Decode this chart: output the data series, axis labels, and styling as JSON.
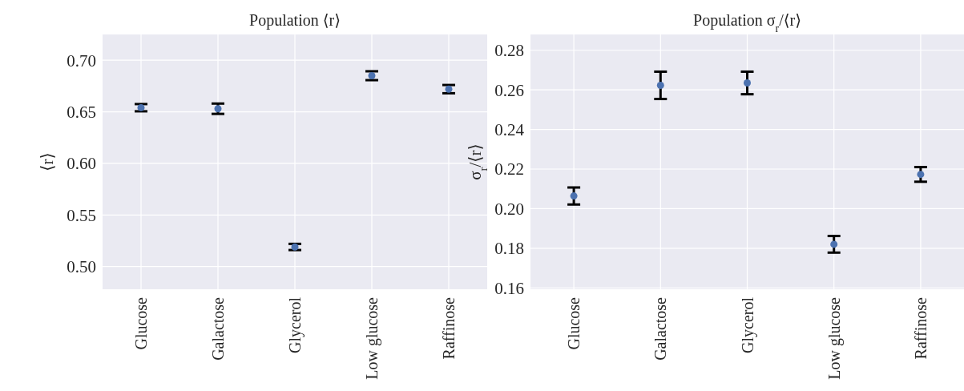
{
  "chart_data": [
    {
      "type": "scatter",
      "title": "Population ⟨r⟩",
      "ylabel": "⟨r⟩",
      "categories": [
        "Glucose",
        "Galactose",
        "Glycerol",
        "Low glucose",
        "Raffinose"
      ],
      "series": [
        {
          "color": "#4c72b0",
          "values": [
            0.654,
            0.653,
            0.519,
            0.685,
            0.672
          ],
          "errors": [
            0.0035,
            0.005,
            0.003,
            0.0043,
            0.004
          ]
        }
      ],
      "ylim": [
        0.478,
        0.725
      ],
      "yticks": [
        {
          "value": 0.5,
          "label": "0.50"
        },
        0.55,
        {
          "value": 0.6,
          "label": "0.60"
        },
        0.65,
        {
          "value": 0.7,
          "label": "0.70"
        }
      ],
      "grid": true,
      "marker": "circle"
    },
    {
      "type": "scatter",
      "title": "Population σ$_{r}$/⟨r⟩",
      "ylabel": "σ$_{r}$/⟨r⟩",
      "categories": [
        "Glucose",
        "Galactose",
        "Glycerol",
        "Low glucose",
        "Raffinose"
      ],
      "series": [
        {
          "color": "#4c72b0",
          "values": [
            0.2064,
            0.2623,
            0.2635,
            0.182,
            0.2173
          ],
          "errors": [
            0.0043,
            0.0069,
            0.0057,
            0.0042,
            0.0037
          ]
        }
      ],
      "ylim": [
        0.1593,
        0.288
      ],
      "yticks": [
        {
          "value": 0.16,
          "label": "0.16"
        },
        {
          "value": 0.18,
          "label": "0.18"
        },
        {
          "value": 0.2,
          "label": "0.20"
        },
        {
          "value": 0.22,
          "label": "0.22"
        },
        {
          "value": 0.24,
          "label": "0.24"
        },
        {
          "value": 0.26,
          "label": "0.26"
        },
        {
          "value": 0.28,
          "label": "0.28"
        }
      ],
      "grid": true,
      "marker": "circle"
    }
  ]
}
